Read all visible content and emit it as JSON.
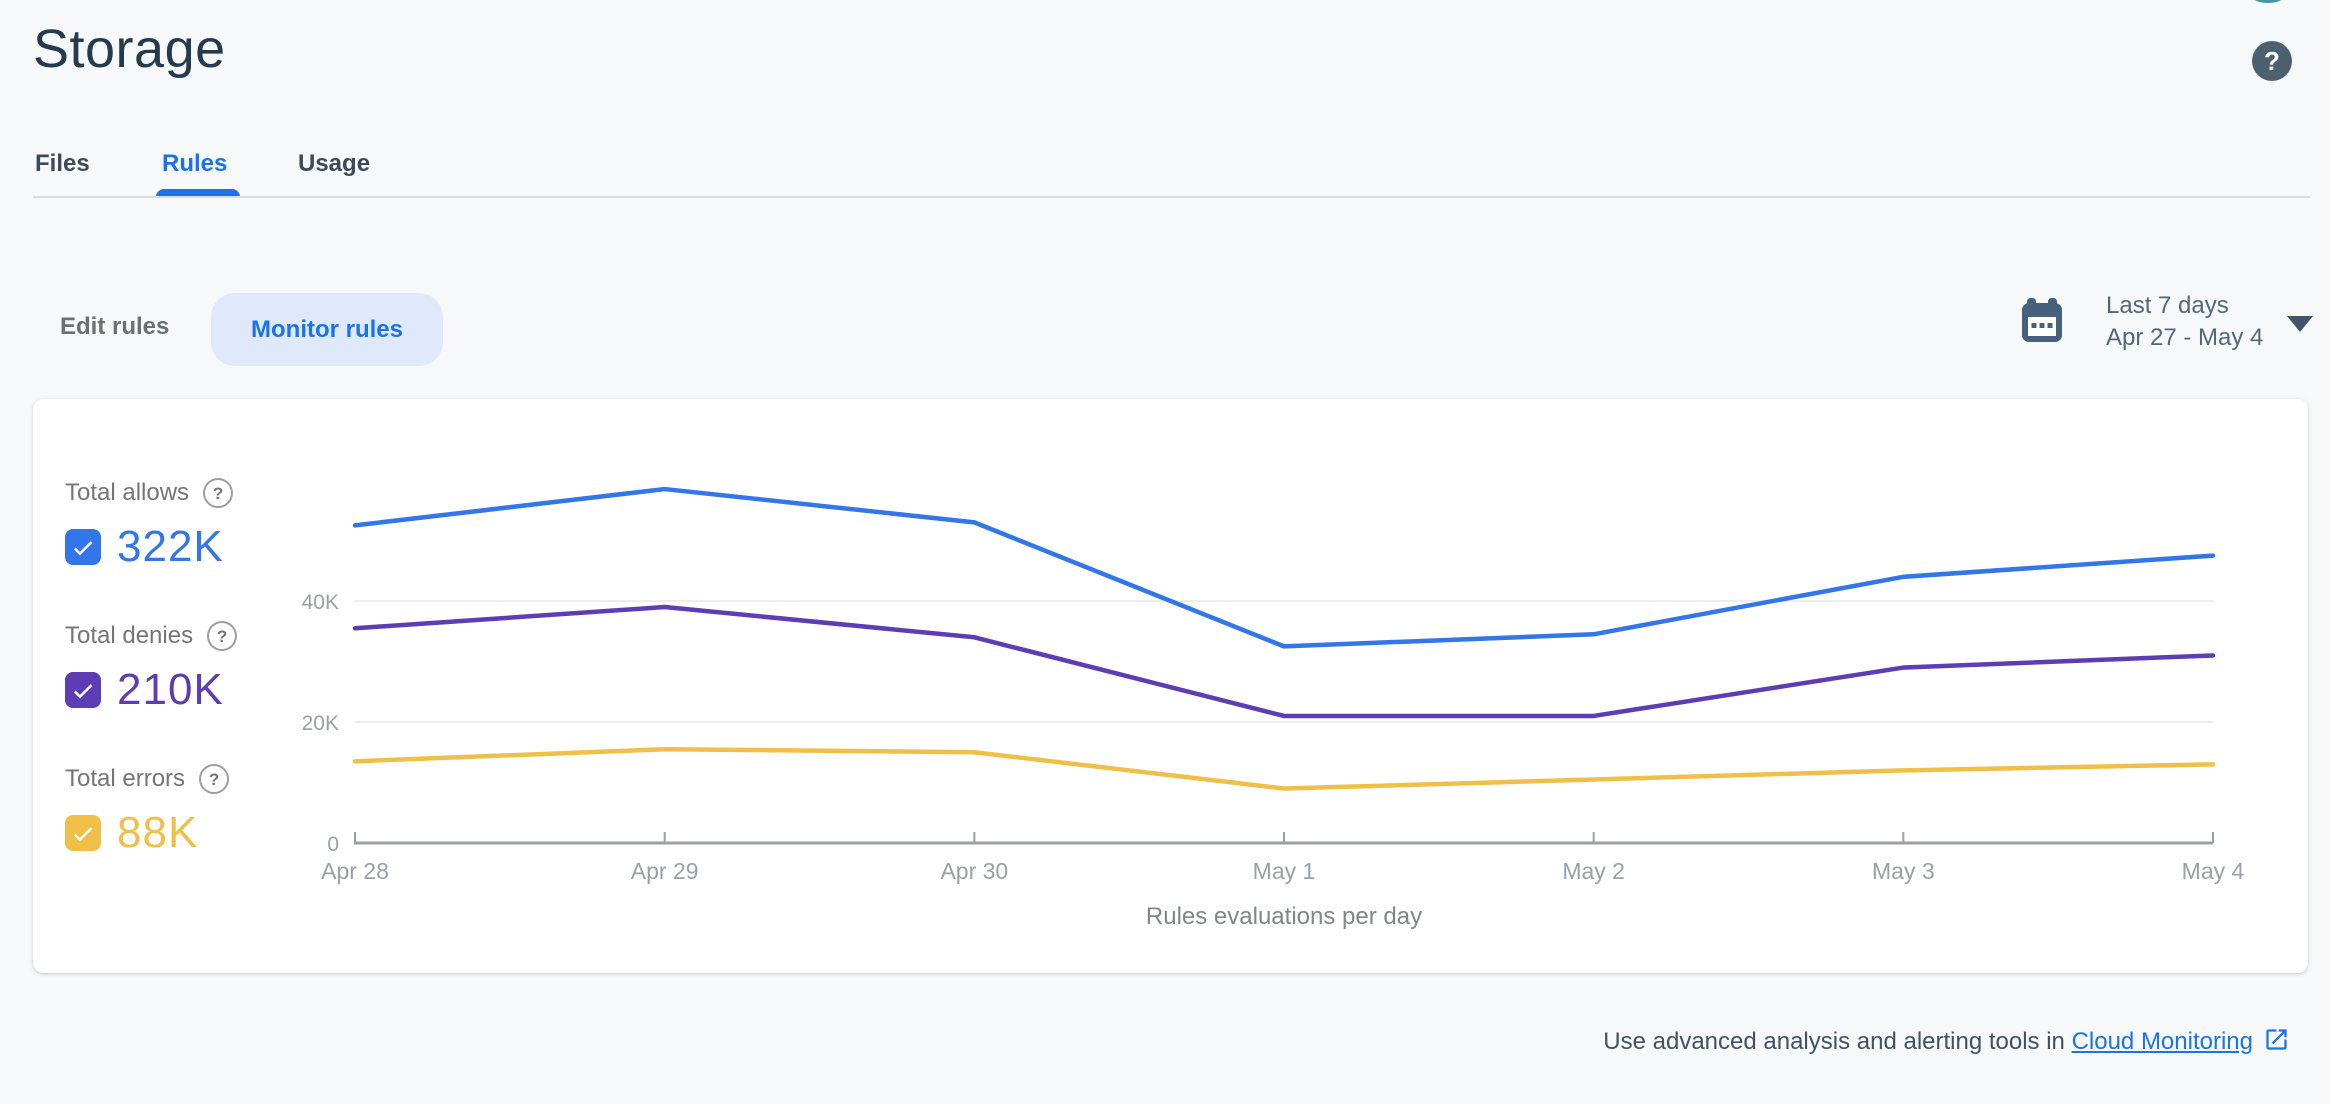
{
  "page": {
    "title": "Storage"
  },
  "header": {
    "help_button_glyph": "?",
    "icons": [
      "avatar-sliver",
      "help-circle-icon"
    ]
  },
  "tabs": [
    {
      "label": "Files",
      "active": false
    },
    {
      "label": "Rules",
      "active": true
    },
    {
      "label": "Usage",
      "active": false
    }
  ],
  "controls": {
    "edit_label": "Edit rules",
    "monitor_label": "Monitor rules",
    "date_preset": "Last 7 days",
    "date_range": "Apr 27 - May 4",
    "icons": [
      "calendar-icon",
      "caret-down-icon"
    ]
  },
  "legend": [
    {
      "label": "Total allows",
      "value": "322K",
      "color": "#3276e9",
      "checked": true,
      "help_glyph": "?"
    },
    {
      "label": "Total denies",
      "value": "210K",
      "color": "#5e3cb3",
      "checked": true,
      "help_glyph": "?"
    },
    {
      "label": "Total errors",
      "value": "88K",
      "color": "#f0bf47",
      "checked": true,
      "help_glyph": "?"
    }
  ],
  "chart_data": {
    "type": "line",
    "title": "Rules evaluations per day",
    "x": [
      "Apr 28",
      "Apr 29",
      "Apr 30",
      "May 1",
      "May 2",
      "May 3",
      "May 4"
    ],
    "series": [
      {
        "name": "Total allows",
        "color": "#3276e9",
        "values": [
          52500,
          58500,
          53000,
          32500,
          34500,
          44000,
          47500
        ]
      },
      {
        "name": "Total denies",
        "color": "#5e3cb3",
        "values": [
          35500,
          39000,
          34000,
          21000,
          21000,
          29000,
          31000
        ]
      },
      {
        "name": "Total errors",
        "color": "#f0bf47",
        "values": [
          13500,
          15500,
          15000,
          9000,
          10500,
          12000,
          13000
        ]
      }
    ],
    "yticks": [
      [
        0,
        "0"
      ],
      [
        20000,
        "20K"
      ],
      [
        40000,
        "40K"
      ]
    ],
    "ylim": [
      0,
      62000
    ],
    "grid": true,
    "legend_position": "left",
    "axis_color": "#9aa0a6",
    "grid_color": "#ebedef"
  },
  "footer": {
    "prefix": "Use advanced analysis and alerting tools in ",
    "link_label": "Cloud Monitoring",
    "icon": "external-link-icon"
  },
  "theme": {
    "accent_blue": "#1a73e8",
    "pill_bg": "#dfe9fb",
    "page_bg": "#f7f8fa",
    "card_bg": "#ffffff"
  }
}
